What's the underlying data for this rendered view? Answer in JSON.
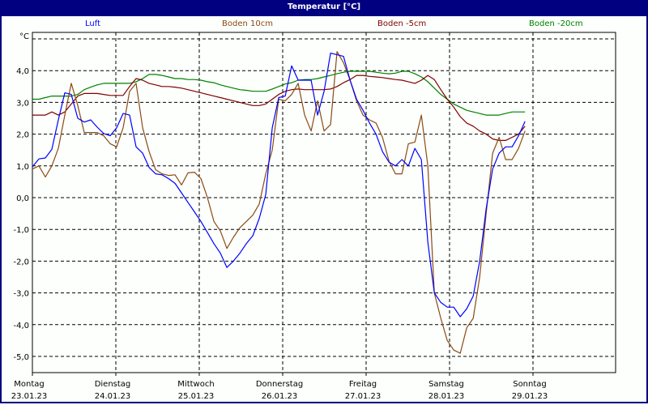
{
  "window": {
    "title": "Temperatur [°C]"
  },
  "colors": {
    "titlebar": "#000080",
    "luft": "#0000ff",
    "boden10": "#8b4a14",
    "boden5": "#800000",
    "boden20": "#008000"
  },
  "chart_data": {
    "type": "line",
    "title": "Temperatur [°C]",
    "ylabel": "°C",
    "xlabel": "",
    "ylim": [
      -5.5,
      5.2
    ],
    "grid": true,
    "legend_position": "top",
    "yticks": [
      "4,0",
      "3,0",
      "2,0",
      "1,0",
      "0,0",
      "-1,0",
      "-2,0",
      "-3,0",
      "-4,0",
      "-5,0"
    ],
    "ytick_values": [
      4,
      3,
      2,
      1,
      0,
      -1,
      -2,
      -3,
      -4,
      -5
    ],
    "xticks": [
      {
        "day": "Montag",
        "date": "23.01.23"
      },
      {
        "day": "Dienstag",
        "date": "24.01.23"
      },
      {
        "day": "Mittwoch",
        "date": "25.01.23"
      },
      {
        "day": "Donnerstag",
        "date": "26.01.23"
      },
      {
        "day": "Freitag",
        "date": "27.01.23"
      },
      {
        "day": "Samstag",
        "date": "28.01.23"
      },
      {
        "day": "Sonntag",
        "date": "29.01.23"
      }
    ],
    "x_unit": "days since 23.01.23 00:00",
    "x_start": 0,
    "x_step": 0.0777,
    "series": [
      {
        "name": "Luft",
        "color": "#0000ff",
        "values": [
          0.97,
          1.22,
          1.25,
          1.52,
          2.45,
          3.3,
          3.25,
          2.5,
          2.38,
          2.45,
          2.22,
          2.02,
          1.95,
          2.2,
          2.65,
          2.6,
          1.6,
          1.4,
          0.95,
          0.75,
          0.72,
          0.6,
          0.45,
          0.15,
          -0.15,
          -0.45,
          -0.75,
          -1.1,
          -1.45,
          -1.75,
          -2.2,
          -2.0,
          -1.75,
          -1.45,
          -1.2,
          -0.65,
          0.1,
          2.2,
          3.15,
          3.2,
          4.15,
          3.7,
          3.7,
          3.7,
          2.6,
          3.35,
          4.55,
          4.5,
          4.45,
          3.7,
          3.1,
          2.75,
          2.35,
          2.0,
          1.45,
          1.12,
          1.0,
          1.2,
          1.0,
          1.55,
          1.2,
          -1.4,
          -3.0,
          -3.3,
          -3.45,
          -3.45,
          -3.75,
          -3.5,
          -3.1,
          -2.0,
          -0.35,
          0.9,
          1.4,
          1.6,
          1.6,
          1.95,
          2.4
        ]
      },
      {
        "name": "Boden 10cm",
        "color": "#8b4a14",
        "values": [
          0.9,
          1.0,
          0.65,
          1.0,
          1.55,
          2.6,
          3.6,
          2.9,
          2.05,
          2.05,
          2.05,
          1.95,
          1.7,
          1.6,
          2.2,
          3.35,
          3.6,
          2.2,
          1.45,
          0.88,
          0.75,
          0.7,
          0.72,
          0.4,
          0.78,
          0.8,
          0.6,
          0.0,
          -0.75,
          -1.05,
          -1.6,
          -1.25,
          -0.95,
          -0.75,
          -0.55,
          -0.2,
          0.75,
          1.5,
          3.1,
          3.05,
          3.25,
          3.6,
          2.6,
          2.1,
          3.05,
          2.1,
          2.3,
          4.6,
          4.25,
          3.7,
          3.05,
          2.6,
          2.45,
          2.35,
          1.9,
          1.15,
          0.75,
          0.75,
          1.7,
          1.75,
          2.6,
          1.0,
          -3.0,
          -3.8,
          -4.5,
          -4.8,
          -4.9,
          -4.1,
          -3.8,
          -2.5,
          -0.5,
          1.4,
          1.9,
          1.2,
          1.2,
          1.55,
          2.1
        ]
      },
      {
        "name": "Boden -5cm",
        "color": "#800000",
        "values": [
          2.6,
          2.6,
          2.6,
          2.7,
          2.6,
          2.7,
          2.95,
          3.2,
          3.28,
          3.28,
          3.28,
          3.25,
          3.22,
          3.22,
          3.22,
          3.5,
          3.75,
          3.7,
          3.6,
          3.55,
          3.5,
          3.5,
          3.48,
          3.45,
          3.4,
          3.35,
          3.3,
          3.25,
          3.2,
          3.15,
          3.1,
          3.05,
          3.0,
          2.95,
          2.9,
          2.9,
          2.95,
          3.1,
          3.25,
          3.35,
          3.4,
          3.42,
          3.4,
          3.4,
          3.4,
          3.4,
          3.42,
          3.5,
          3.62,
          3.72,
          3.85,
          3.85,
          3.82,
          3.8,
          3.78,
          3.75,
          3.72,
          3.7,
          3.65,
          3.6,
          3.7,
          3.85,
          3.72,
          3.4,
          3.1,
          2.85,
          2.55,
          2.35,
          2.25,
          2.1,
          2.0,
          1.85,
          1.8,
          1.8,
          1.9,
          2.0,
          2.25
        ]
      },
      {
        "name": "Boden -20cm",
        "color": "#008000",
        "values": [
          3.1,
          3.1,
          3.15,
          3.2,
          3.2,
          3.2,
          3.2,
          3.25,
          3.4,
          3.48,
          3.55,
          3.6,
          3.6,
          3.6,
          3.6,
          3.6,
          3.65,
          3.75,
          3.88,
          3.88,
          3.85,
          3.8,
          3.75,
          3.75,
          3.72,
          3.72,
          3.7,
          3.65,
          3.62,
          3.55,
          3.5,
          3.45,
          3.4,
          3.38,
          3.35,
          3.35,
          3.35,
          3.42,
          3.5,
          3.58,
          3.62,
          3.7,
          3.72,
          3.72,
          3.75,
          3.8,
          3.85,
          3.9,
          3.95,
          3.98,
          3.98,
          3.98,
          3.98,
          3.95,
          3.92,
          3.9,
          3.92,
          3.98,
          3.98,
          3.9,
          3.8,
          3.65,
          3.45,
          3.25,
          3.1,
          2.95,
          2.85,
          2.75,
          2.7,
          2.65,
          2.6,
          2.6,
          2.6,
          2.65,
          2.7,
          2.7,
          2.7
        ]
      }
    ]
  }
}
